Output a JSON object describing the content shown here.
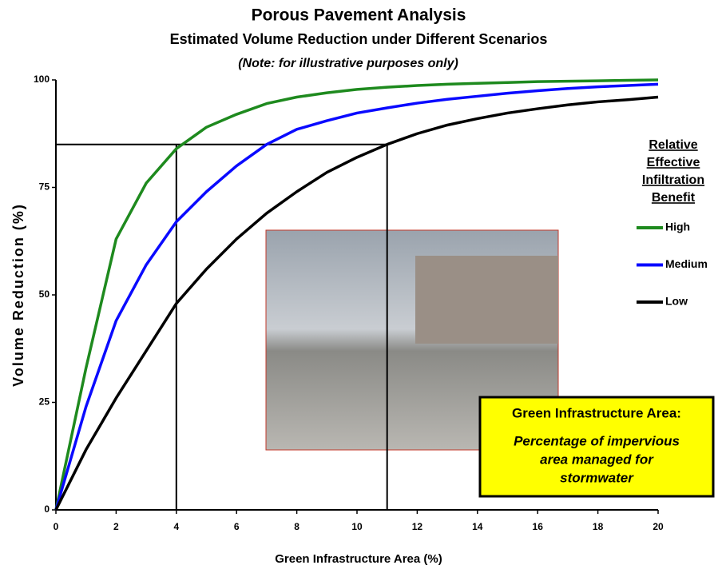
{
  "chart_data": {
    "type": "line",
    "title": "Porous Pavement Analysis",
    "subtitle": "Estimated Volume Reduction under Different Scenarios",
    "note": "(Note:  for illustrative purposes only)",
    "x_label": "Green Infrastructure Area (%)",
    "y_label": "Volume Reduction  (%)",
    "x": [
      0,
      1,
      2,
      3,
      4,
      5,
      6,
      7,
      8,
      9,
      10,
      11,
      12,
      13,
      14,
      15,
      16,
      17,
      18,
      19,
      20
    ],
    "series": [
      {
        "name": "High",
        "color": "#1e8a1e",
        "values": [
          0,
          33,
          63,
          76,
          84,
          89,
          92,
          94.5,
          96,
          97,
          97.8,
          98.3,
          98.7,
          99,
          99.2,
          99.4,
          99.6,
          99.7,
          99.8,
          99.9,
          100
        ]
      },
      {
        "name": "Medium",
        "color": "#0a0aff",
        "values": [
          0,
          24,
          44,
          57,
          67,
          74,
          80,
          85,
          88.5,
          90.5,
          92.3,
          93.5,
          94.6,
          95.5,
          96.2,
          96.9,
          97.5,
          98,
          98.4,
          98.7,
          99
        ]
      },
      {
        "name": "Low",
        "color": "#000000",
        "values": [
          0,
          14,
          26,
          37,
          48,
          56,
          63,
          69,
          74,
          78.5,
          82,
          85,
          87.5,
          89.5,
          91,
          92.3,
          93.3,
          94.2,
          94.9,
          95.4,
          96
        ]
      }
    ],
    "xlim": [
      0,
      20
    ],
    "xticks": [
      0,
      2,
      4,
      6,
      8,
      10,
      12,
      14,
      16,
      18,
      20
    ],
    "ylim": [
      0,
      100
    ],
    "yticks": [
      0,
      25,
      50,
      75,
      100
    ],
    "reference": {
      "y": 85,
      "x": [
        4,
        11
      ]
    },
    "legend_title": [
      "Relative",
      "Effective",
      "Infiltration",
      "Benefit"
    ],
    "callout": {
      "title": "Green Infrastructure Area:",
      "lines": [
        "Percentage of impervious",
        "area managed for",
        "stormwater"
      ]
    }
  }
}
